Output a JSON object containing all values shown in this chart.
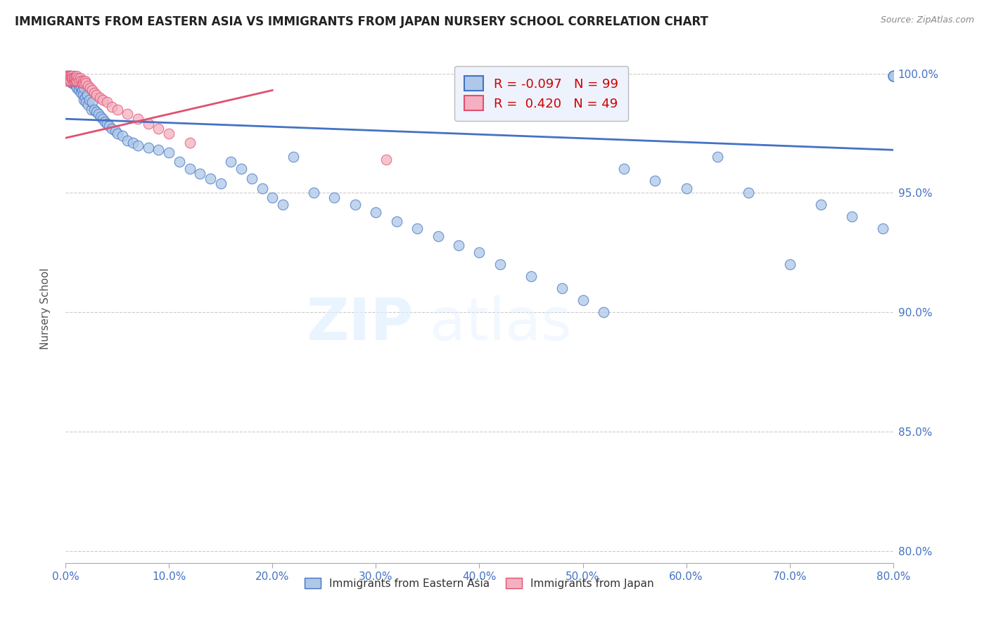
{
  "title": "IMMIGRANTS FROM EASTERN ASIA VS IMMIGRANTS FROM JAPAN NURSERY SCHOOL CORRELATION CHART",
  "source": "Source: ZipAtlas.com",
  "xlabel": "",
  "ylabel": "Nursery School",
  "xmin": 0.0,
  "xmax": 0.8,
  "ymin": 0.795,
  "ymax": 1.008,
  "yticks": [
    0.8,
    0.85,
    0.9,
    0.95,
    1.0
  ],
  "xticks": [
    0.0,
    0.1,
    0.2,
    0.3,
    0.4,
    0.5,
    0.6,
    0.7,
    0.8
  ],
  "blue_R": -0.097,
  "blue_N": 99,
  "pink_R": 0.42,
  "pink_N": 49,
  "blue_color": "#adc8e8",
  "pink_color": "#f4b0c0",
  "blue_line_color": "#4472c4",
  "pink_line_color": "#e05070",
  "grid_color": "#cccccc",
  "axis_color": "#4472c4",
  "title_color": "#222222",
  "watermark_color": "#ddeeff",
  "blue_trend_x0": 0.0,
  "blue_trend_y0": 0.981,
  "blue_trend_x1": 0.8,
  "blue_trend_y1": 0.968,
  "pink_trend_x0": 0.0,
  "pink_trend_y0": 0.973,
  "pink_trend_x1": 0.2,
  "pink_trend_y1": 0.993,
  "blue_x": [
    0.001,
    0.002,
    0.003,
    0.003,
    0.004,
    0.004,
    0.005,
    0.005,
    0.005,
    0.006,
    0.006,
    0.006,
    0.007,
    0.007,
    0.008,
    0.008,
    0.009,
    0.009,
    0.01,
    0.01,
    0.011,
    0.011,
    0.012,
    0.012,
    0.013,
    0.013,
    0.014,
    0.015,
    0.015,
    0.016,
    0.017,
    0.018,
    0.018,
    0.019,
    0.02,
    0.021,
    0.022,
    0.023,
    0.025,
    0.026,
    0.028,
    0.03,
    0.032,
    0.034,
    0.036,
    0.038,
    0.04,
    0.042,
    0.045,
    0.048,
    0.05,
    0.055,
    0.06,
    0.065,
    0.07,
    0.08,
    0.09,
    0.1,
    0.11,
    0.12,
    0.13,
    0.14,
    0.15,
    0.16,
    0.17,
    0.18,
    0.19,
    0.2,
    0.21,
    0.22,
    0.24,
    0.26,
    0.28,
    0.3,
    0.32,
    0.34,
    0.36,
    0.38,
    0.4,
    0.42,
    0.45,
    0.48,
    0.5,
    0.52,
    0.54,
    0.57,
    0.6,
    0.63,
    0.66,
    0.7,
    0.73,
    0.76,
    0.79,
    0.8,
    0.8,
    0.8,
    0.8,
    0.8,
    0.8
  ],
  "blue_y": [
    0.999,
    0.998,
    0.999,
    0.997,
    0.999,
    0.998,
    0.999,
    0.998,
    0.997,
    0.998,
    0.996,
    0.997,
    0.996,
    0.998,
    0.997,
    0.999,
    0.996,
    0.998,
    0.997,
    0.995,
    0.997,
    0.994,
    0.996,
    0.998,
    0.995,
    0.993,
    0.997,
    0.994,
    0.992,
    0.993,
    0.991,
    0.994,
    0.989,
    0.99,
    0.988,
    0.991,
    0.987,
    0.989,
    0.985,
    0.988,
    0.985,
    0.984,
    0.983,
    0.982,
    0.981,
    0.98,
    0.979,
    0.978,
    0.977,
    0.976,
    0.975,
    0.974,
    0.972,
    0.971,
    0.97,
    0.969,
    0.968,
    0.967,
    0.963,
    0.96,
    0.958,
    0.956,
    0.954,
    0.963,
    0.96,
    0.956,
    0.952,
    0.948,
    0.945,
    0.965,
    0.95,
    0.948,
    0.945,
    0.942,
    0.938,
    0.935,
    0.932,
    0.928,
    0.925,
    0.92,
    0.915,
    0.91,
    0.905,
    0.9,
    0.96,
    0.955,
    0.952,
    0.965,
    0.95,
    0.92,
    0.945,
    0.94,
    0.935,
    0.999,
    0.999,
    0.999,
    0.999,
    0.999,
    0.999
  ],
  "pink_x": [
    0.001,
    0.001,
    0.002,
    0.002,
    0.003,
    0.003,
    0.004,
    0.004,
    0.005,
    0.005,
    0.005,
    0.006,
    0.006,
    0.007,
    0.007,
    0.008,
    0.008,
    0.009,
    0.009,
    0.01,
    0.01,
    0.011,
    0.011,
    0.012,
    0.013,
    0.014,
    0.015,
    0.016,
    0.017,
    0.018,
    0.019,
    0.02,
    0.022,
    0.024,
    0.026,
    0.028,
    0.03,
    0.033,
    0.036,
    0.04,
    0.045,
    0.05,
    0.06,
    0.07,
    0.08,
    0.09,
    0.1,
    0.12,
    0.31
  ],
  "pink_y": [
    0.997,
    0.999,
    0.998,
    0.999,
    0.998,
    0.999,
    0.997,
    0.999,
    0.999,
    0.998,
    0.997,
    0.999,
    0.998,
    0.997,
    0.998,
    0.997,
    0.998,
    0.997,
    0.998,
    0.997,
    0.998,
    0.997,
    0.999,
    0.998,
    0.997,
    0.998,
    0.997,
    0.996,
    0.997,
    0.996,
    0.997,
    0.996,
    0.995,
    0.994,
    0.993,
    0.992,
    0.991,
    0.99,
    0.989,
    0.988,
    0.986,
    0.985,
    0.983,
    0.981,
    0.979,
    0.977,
    0.975,
    0.971,
    0.964
  ],
  "legend_box_color": "#eef2fc",
  "legend_border_color": "#bbbbbb"
}
